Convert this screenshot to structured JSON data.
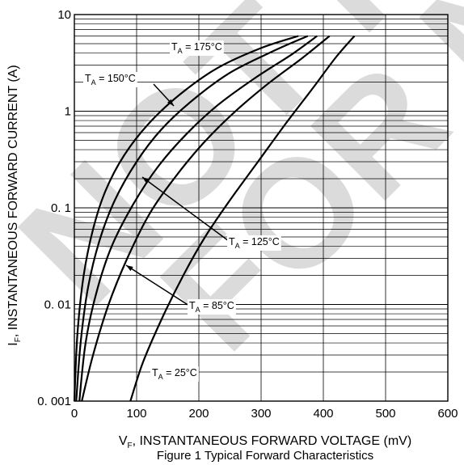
{
  "watermark": {
    "line1": "NOT F",
    "line2": "FOR N"
  },
  "chart_data": {
    "type": "line",
    "title": "Figure 1 Typical Forward Characteristics",
    "xlabel": "Vₒ, INSTANTANEOUS FORWARD VOLTAGE (mV)",
    "ylabel": "Iₒ, INSTANTANEOUS FORWARD CURRENT (A)",
    "xlabel_parts": {
      "main": "V",
      "sub": "F",
      "rest": ", INSTANTANEOUS FORWARD VOLTAGE (mV)"
    },
    "ylabel_parts": {
      "main": "I",
      "sub": "F",
      "rest": ", INSTANTANEOUS FORWARD CURRENT (A)"
    },
    "xlim": [
      0,
      600
    ],
    "ylim": [
      0.001,
      10
    ],
    "yscale": "log",
    "grid": true,
    "xticks": [
      0,
      100,
      200,
      300,
      400,
      500,
      600
    ],
    "xtick_labels": [
      "0",
      "100",
      "200",
      "300",
      "400",
      "500",
      "600"
    ],
    "yticks": [
      0.001,
      0.01,
      0.1,
      1,
      10
    ],
    "ytick_labels": [
      "0. 001",
      "0. 01",
      "0. 1",
      "1",
      "10"
    ],
    "series": [
      {
        "name": "T_A = 175°C",
        "x": [
          0,
          5,
          15,
          30,
          50,
          80,
          120,
          170,
          230,
          300,
          360
        ],
        "y": [
          0.001,
          0.005,
          0.02,
          0.06,
          0.15,
          0.35,
          0.75,
          1.5,
          2.8,
          4.5,
          6.0
        ]
      },
      {
        "name": "T_A = 150°C",
        "x": [
          3,
          10,
          22,
          40,
          65,
          100,
          140,
          190,
          250,
          320,
          375
        ],
        "y": [
          0.001,
          0.004,
          0.015,
          0.045,
          0.12,
          0.3,
          0.65,
          1.3,
          2.5,
          4.2,
          6.0
        ]
      },
      {
        "name": "T_A = 125°C",
        "x": [
          8,
          18,
          35,
          60,
          95,
          135,
          180,
          230,
          290,
          350,
          390
        ],
        "y": [
          0.001,
          0.004,
          0.013,
          0.04,
          0.11,
          0.27,
          0.58,
          1.15,
          2.2,
          3.9,
          6.0
        ]
      },
      {
        "name": "T_A = 85°C",
        "x": [
          12,
          30,
          55,
          85,
          120,
          160,
          205,
          255,
          310,
          365,
          410
        ],
        "y": [
          0.001,
          0.003,
          0.01,
          0.03,
          0.085,
          0.2,
          0.45,
          0.95,
          1.9,
          3.5,
          6.0
        ]
      },
      {
        "name": "T_A = 25°C",
        "x": [
          90,
          110,
          140,
          175,
          210,
          250,
          295,
          340,
          385,
          420,
          450
        ],
        "y": [
          0.001,
          0.0025,
          0.007,
          0.02,
          0.05,
          0.12,
          0.3,
          0.75,
          1.8,
          3.6,
          6.0
        ]
      }
    ],
    "annotations": [
      {
        "T": "T",
        "sub": "A",
        "rest": " = 175°C",
        "series": 0
      },
      {
        "T": "T",
        "sub": "A",
        "rest": " = 150°C",
        "series": 1
      },
      {
        "T": "T",
        "sub": "A",
        "rest": " = 125°C",
        "series": 2
      },
      {
        "T": "T",
        "sub": "A",
        "rest": " = 85°C",
        "series": 3
      },
      {
        "T": "T",
        "sub": "A",
        "rest": " = 25°C",
        "series": 4
      }
    ],
    "colors": {
      "line": "#000000",
      "grid": "#000000",
      "background": "#ffffff"
    }
  }
}
